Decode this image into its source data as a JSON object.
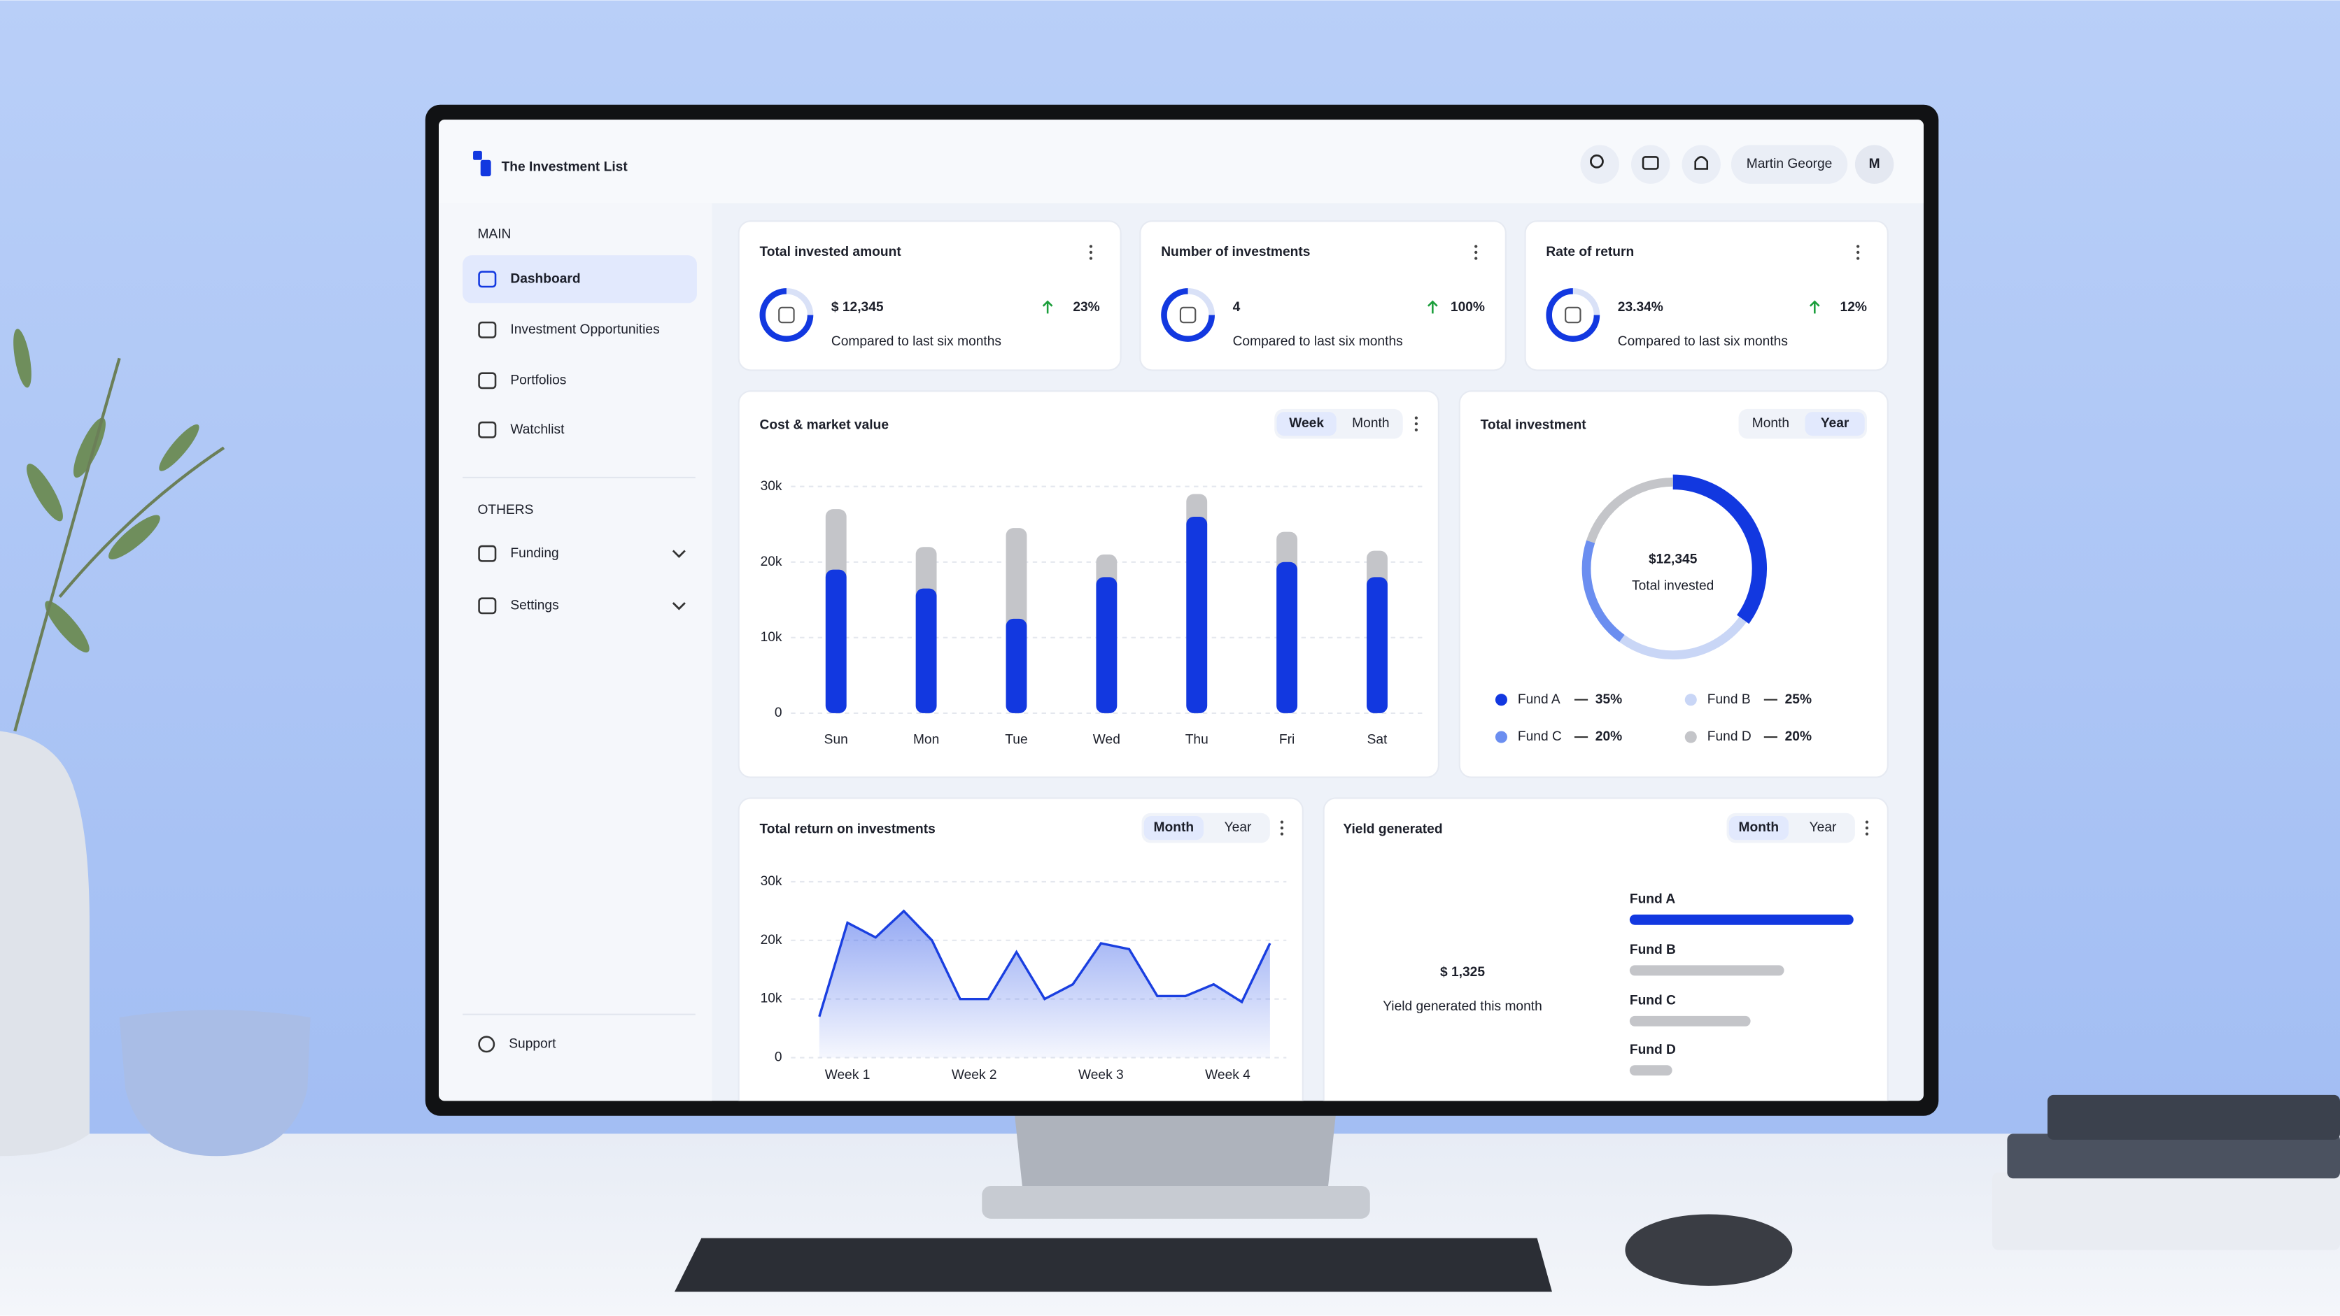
{
  "header": {
    "title": "The Investment List",
    "user": "Martin George",
    "initial": "M"
  },
  "sidebar": {
    "main_label": "MAIN",
    "main": [
      "Dashboard",
      "Investment Opportunities",
      "Portfolios",
      "Watchlist"
    ],
    "others_label": "OTHERS",
    "others": [
      "Funding",
      "Settings"
    ],
    "support": "Support"
  },
  "stats": [
    {
      "title": "Total invested amount",
      "value": "$ 12,345",
      "change": "23%",
      "note": "Compared to last six months"
    },
    {
      "title": "Number of investments",
      "value": "4",
      "change": "100%",
      "note": "Compared to last six months"
    },
    {
      "title": "Rate of return",
      "value": "23.34%",
      "change": "12%",
      "note": "Compared to last six months"
    }
  ],
  "chart_data": [
    {
      "type": "bar",
      "title": "Cost & market value",
      "tabs": [
        "Week",
        "Month"
      ],
      "categories": [
        "Sun",
        "Mon",
        "Tue",
        "Wed",
        "Thu",
        "Fri",
        "Sat"
      ],
      "series": [
        {
          "color": "#c4c5c9",
          "values": [
            27000,
            22000,
            24500,
            21000,
            29000,
            24000,
            21500
          ]
        },
        {
          "color": "#1238e0",
          "values": [
            19000,
            16500,
            12500,
            18000,
            26000,
            20000,
            18000
          ]
        }
      ],
      "ylim": [
        0,
        30000
      ],
      "yticks": [
        0,
        {
          "value": 10000,
          "label": "10k"
        },
        {
          "value": 20000,
          "label": "20k"
        },
        {
          "value": 30000,
          "label": "30k"
        }
      ],
      "grid": true
    },
    {
      "type": "donut",
      "title": "Total investment",
      "tabs": [
        "Month",
        "Year"
      ],
      "center": "$12,345",
      "center_label": "Total invested",
      "categories": [
        "Fund A",
        "Fund B",
        "Fund C",
        "Fund D"
      ],
      "values": [
        35,
        25,
        20,
        20
      ],
      "value_labels": [
        "35%",
        "25%",
        "20%",
        "20%"
      ],
      "colors": [
        "#1238e0",
        "#c9d6f6",
        "#6b8ef0",
        "#c4c5c9"
      ]
    },
    {
      "type": "area",
      "title": "Total return on investments",
      "tabs": [
        "Month",
        "Year"
      ],
      "color": "#1a3fe0",
      "x": [
        0,
        1,
        2,
        3,
        4,
        5,
        6,
        7,
        8,
        9,
        10,
        11,
        12,
        13,
        14,
        15,
        16
      ],
      "values": [
        7000,
        23000,
        20500,
        25000,
        20000,
        10000,
        10000,
        18000,
        10000,
        12500,
        19500,
        18500,
        10500,
        10500,
        12500,
        9500,
        19500
      ],
      "xlim": [
        0,
        16
      ],
      "xticks": [
        {
          "value": 1,
          "label": "Week 1"
        },
        {
          "value": 5.5,
          "label": "Week 2"
        },
        {
          "value": 10,
          "label": "Week 3"
        },
        {
          "value": 14.5,
          "label": "Week 4"
        }
      ],
      "ylim": [
        0,
        30000
      ],
      "yticks": [
        0,
        {
          "value": 10000,
          "label": "10k"
        },
        {
          "value": 20000,
          "label": "20k"
        },
        {
          "value": 30000,
          "label": "30k"
        }
      ],
      "grid": true
    },
    {
      "type": "hbar",
      "title": "Yield generated",
      "tabs": [
        "Month",
        "Year"
      ],
      "total": "$ 1,325",
      "total_label": "Yield generated this month",
      "categories": [
        "Fund A",
        "Fund B",
        "Fund C",
        "Fund D"
      ],
      "values": [
        100,
        69,
        54,
        19
      ],
      "colors": [
        "#1238e0",
        "#c4c5c9",
        "#c4c5c9",
        "#c4c5c9"
      ],
      "xlim": [
        0,
        100
      ]
    }
  ]
}
